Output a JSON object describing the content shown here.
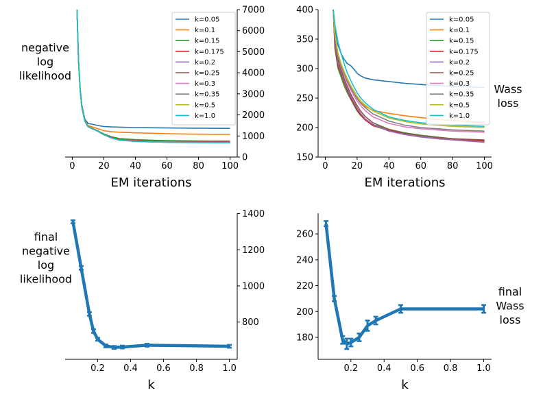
{
  "chart_data": [
    {
      "type": "line",
      "x": [
        3,
        4,
        5,
        6,
        8,
        10,
        13,
        16,
        20,
        25,
        30,
        40,
        50,
        60,
        70,
        80,
        90,
        100
      ],
      "series": [
        {
          "name": "k=0.05",
          "color": "#1f77b4",
          "values": [
            7000,
            4600,
            3300,
            2500,
            1800,
            1600,
            1550,
            1500,
            1450,
            1430,
            1420,
            1400,
            1390,
            1380,
            1375,
            1370,
            1365,
            1360
          ]
        },
        {
          "name": "k=0.1",
          "color": "#ff7f0e",
          "values": [
            7000,
            4550,
            3250,
            2450,
            1750,
            1500,
            1420,
            1350,
            1250,
            1200,
            1180,
            1150,
            1130,
            1110,
            1095,
            1085,
            1080,
            1080
          ]
        },
        {
          "name": "k=0.15",
          "color": "#2ca02c",
          "values": [
            7000,
            4500,
            3200,
            2400,
            1700,
            1450,
            1350,
            1250,
            1100,
            960,
            880,
            830,
            800,
            780,
            770,
            765,
            760,
            760
          ]
        },
        {
          "name": "k=0.175",
          "color": "#d62728",
          "values": [
            7000,
            4500,
            3200,
            2400,
            1700,
            1450,
            1340,
            1240,
            1080,
            920,
            830,
            780,
            760,
            745,
            735,
            730,
            730,
            730
          ]
        },
        {
          "name": "k=0.2",
          "color": "#9467bd",
          "values": [
            7000,
            4500,
            3200,
            2400,
            1700,
            1440,
            1330,
            1230,
            1060,
            900,
            810,
            760,
            740,
            725,
            715,
            710,
            705,
            705
          ]
        },
        {
          "name": "k=0.25",
          "color": "#8c564b",
          "values": [
            7000,
            4500,
            3200,
            2400,
            1700,
            1440,
            1330,
            1230,
            1060,
            900,
            800,
            750,
            730,
            715,
            705,
            700,
            695,
            695
          ]
        },
        {
          "name": "k=0.3",
          "color": "#e377c2",
          "values": [
            7000,
            4500,
            3200,
            2400,
            1700,
            1440,
            1330,
            1230,
            1060,
            900,
            800,
            750,
            725,
            710,
            700,
            695,
            690,
            690
          ]
        },
        {
          "name": "k=0.35",
          "color": "#7f7f7f",
          "values": [
            7000,
            4500,
            3200,
            2400,
            1700,
            1440,
            1330,
            1230,
            1060,
            900,
            800,
            745,
            720,
            705,
            695,
            690,
            685,
            685
          ]
        },
        {
          "name": "k=0.5",
          "color": "#bcbd22",
          "values": [
            7000,
            4500,
            3200,
            2400,
            1700,
            1440,
            1330,
            1230,
            1060,
            900,
            800,
            745,
            720,
            705,
            695,
            690,
            685,
            685
          ]
        },
        {
          "name": "k=1.0",
          "color": "#17becf",
          "values": [
            7000,
            4500,
            3200,
            2400,
            1700,
            1440,
            1330,
            1230,
            1060,
            900,
            800,
            740,
            715,
            700,
            690,
            685,
            680,
            680
          ]
        }
      ],
      "xlabel": "EM iterations",
      "ylabel": "negative\nlog\nlikelihood",
      "xlim": [
        -4.5,
        104.5
      ],
      "ylim": [
        0,
        7000
      ],
      "xticks": [
        "0",
        "20",
        "40",
        "60",
        "80",
        "100"
      ],
      "yticks": [
        "0",
        "1000",
        "2000",
        "3000",
        "4000",
        "5000",
        "6000",
        "7000"
      ],
      "y_axis_side": "right",
      "legend": "top-right",
      "grid": false
    },
    {
      "type": "line",
      "x": [
        5,
        6,
        8,
        10,
        12,
        14,
        16,
        18,
        20,
        22,
        25,
        30,
        40,
        50,
        60,
        70,
        80,
        90,
        100
      ],
      "series": [
        {
          "name": "k=0.05",
          "color": "#1f77b4",
          "values": [
            400,
            370,
            340,
            325,
            315,
            308,
            305,
            299,
            292,
            288,
            284,
            281,
            278,
            275,
            273,
            271,
            270,
            269,
            268
          ]
        },
        {
          "name": "k=0.1",
          "color": "#ff7f0e",
          "values": [
            400,
            360,
            325,
            305,
            290,
            278,
            268,
            258,
            250,
            243,
            236,
            229,
            224,
            220,
            217,
            214,
            212,
            210,
            209
          ]
        },
        {
          "name": "k=0.15",
          "color": "#2ca02c",
          "values": [
            400,
            335,
            300,
            285,
            270,
            258,
            248,
            238,
            228,
            221,
            214,
            205,
            197,
            191,
            187,
            184,
            181,
            179,
            178
          ]
        },
        {
          "name": "k=0.175",
          "color": "#d62728",
          "values": [
            400,
            340,
            305,
            290,
            275,
            262,
            250,
            240,
            230,
            222,
            213,
            203,
            195,
            190,
            186,
            183,
            181,
            179,
            177
          ]
        },
        {
          "name": "k=0.2",
          "color": "#9467bd",
          "values": [
            400,
            345,
            310,
            293,
            278,
            265,
            253,
            243,
            233,
            225,
            215,
            205,
            194,
            188,
            184,
            181,
            179,
            177,
            175
          ]
        },
        {
          "name": "k=0.25",
          "color": "#8c564b",
          "values": [
            400,
            350,
            315,
            297,
            282,
            269,
            257,
            247,
            237,
            229,
            219,
            208,
            197,
            190,
            186,
            183,
            181,
            180,
            179
          ]
        },
        {
          "name": "k=0.3",
          "color": "#e377c2",
          "values": [
            400,
            355,
            320,
            302,
            288,
            275,
            264,
            254,
            245,
            238,
            229,
            218,
            207,
            201,
            198,
            196,
            194,
            193,
            192
          ]
        },
        {
          "name": "k=0.35",
          "color": "#7f7f7f",
          "values": [
            400,
            357,
            322,
            304,
            290,
            278,
            267,
            258,
            249,
            242,
            234,
            223,
            211,
            204,
            200,
            198,
            196,
            195,
            194
          ]
        },
        {
          "name": "k=0.5",
          "color": "#bcbd22",
          "values": [
            400,
            360,
            326,
            308,
            294,
            282,
            271,
            262,
            253,
            246,
            238,
            228,
            216,
            210,
            206,
            204,
            202,
            201,
            200
          ]
        },
        {
          "name": "k=1.0",
          "color": "#17becf",
          "values": [
            400,
            375,
            345,
            325,
            307,
            292,
            280,
            269,
            259,
            251,
            242,
            231,
            218,
            212,
            208,
            206,
            204,
            203,
            202
          ]
        }
      ],
      "xlabel": "EM iterations",
      "ylabel": "Wass\nloss",
      "xlim": [
        -4.5,
        104.5
      ],
      "ylim": [
        150,
        400
      ],
      "xticks": [
        "0",
        "20",
        "40",
        "60",
        "80",
        "100"
      ],
      "yticks": [
        "150",
        "200",
        "250",
        "300",
        "350",
        "400"
      ],
      "y_axis_side": "left",
      "y_label_side": "right",
      "legend": "top-right",
      "grid": false
    },
    {
      "type": "line",
      "categories": [
        "0.05",
        "0.1",
        "0.15",
        "0.175",
        "0.2",
        "0.25",
        "0.3",
        "0.35",
        "0.5",
        "1.0"
      ],
      "x": [
        0.05,
        0.1,
        0.15,
        0.175,
        0.2,
        0.25,
        0.3,
        0.35,
        0.5,
        1.0
      ],
      "values": [
        1355,
        1100,
        845,
        750,
        705,
        668,
        660,
        662,
        672,
        666
      ],
      "errors": [
        8,
        10,
        10,
        10,
        8,
        8,
        8,
        8,
        8,
        8
      ],
      "color": "#1f77b4",
      "error_bars": true,
      "xlabel": "k",
      "ylabel": "final\nnegative\nlog\nlikelihood",
      "xlim": [
        0.0025,
        1.0475
      ],
      "ylim": [
        594,
        1402
      ],
      "xticks": [
        "0.2",
        "0.4",
        "0.6",
        "0.8",
        "1.0"
      ],
      "yticks": [
        "800",
        "1000",
        "1200",
        "1400"
      ],
      "y_axis_side": "right",
      "grid": false
    },
    {
      "type": "line",
      "categories": [
        "0.05",
        "0.1",
        "0.15",
        "0.175",
        "0.2",
        "0.25",
        "0.3",
        "0.35",
        "0.5",
        "1.0"
      ],
      "x": [
        0.05,
        0.1,
        0.15,
        0.175,
        0.2,
        0.25,
        0.3,
        0.35,
        0.5,
        1.0
      ],
      "values": [
        268,
        210,
        178,
        175,
        176,
        180,
        189,
        193,
        202,
        202
      ],
      "errors": [
        2,
        2,
        3,
        4,
        3,
        3,
        4,
        3,
        3,
        3
      ],
      "color": "#1f77b4",
      "error_bars": true,
      "xlabel": "k",
      "ylabel": "final\nWass\nloss",
      "xlim": [
        0.0025,
        1.0475
      ],
      "ylim": [
        163,
        276
      ],
      "xticks": [
        "0.2",
        "0.4",
        "0.6",
        "0.8",
        "1.0"
      ],
      "yticks": [
        "180",
        "200",
        "220",
        "240",
        "260"
      ],
      "y_axis_side": "left",
      "y_label_side": "right",
      "grid": false
    }
  ]
}
